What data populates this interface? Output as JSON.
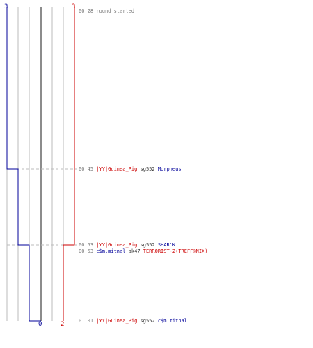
{
  "counters": {
    "blue_top": "3",
    "red_top": "3",
    "blue_bottom": "0",
    "red_bottom": "2"
  },
  "events": [
    {
      "time": "00:28",
      "killer": "",
      "weapon": "",
      "victim": "",
      "text": "round started"
    },
    {
      "time": "00:45",
      "killer": "|YY|Guinea_Pig",
      "weapon": "sg552",
      "victim": "Morpheus",
      "text": ""
    },
    {
      "time": "00:53",
      "killer": "|YY|Guinea_Pig",
      "weapon": "sg552",
      "victim": "SHAR'K",
      "text": ""
    },
    {
      "time": "00:53",
      "killer": "c$m.mitnal",
      "weapon": "ak47",
      "victim": "TERRORIST-2(TREFF@NIX)",
      "text": ""
    },
    {
      "time": "01:01",
      "killer": "|YY|Guinea_Pig",
      "weapon": "sg552",
      "victim": "c$m.mitnal",
      "text": ""
    }
  ],
  "colors": {
    "team_red": "#cc0000",
    "team_blue": "#000099",
    "time": "#777777",
    "grid": "#bbbbbb",
    "dashed": "#bbbbbb",
    "center": "#666666"
  }
}
